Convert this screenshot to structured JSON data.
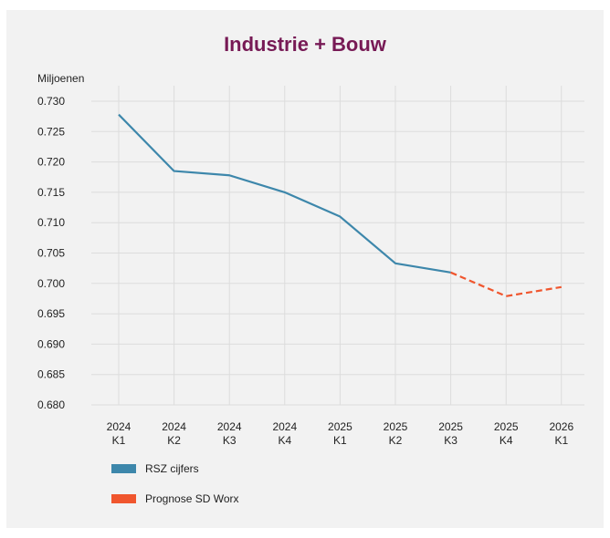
{
  "chart_data": {
    "type": "line",
    "title": "Industrie + Bouw",
    "ylabel": "Miljoenen",
    "xlabel": "",
    "categories": [
      [
        "2024",
        "K1"
      ],
      [
        "2024",
        "K2"
      ],
      [
        "2024",
        "K3"
      ],
      [
        "2024",
        "K4"
      ],
      [
        "2025",
        "K1"
      ],
      [
        "2025",
        "K2"
      ],
      [
        "2025",
        "K3"
      ],
      [
        "2025",
        "K4"
      ],
      [
        "2026",
        "K1"
      ]
    ],
    "yticks": [
      "0.730",
      "0.725",
      "0.720",
      "0.715",
      "0.710",
      "0.705",
      "0.700",
      "0.695",
      "0.690",
      "0.685",
      "0.680"
    ],
    "ylim": [
      0.68,
      0.73
    ],
    "grid": true,
    "legend_position": "bottom-left",
    "series": [
      {
        "name": "RSZ cijfers",
        "style": "solid",
        "color": "#3d87ab",
        "values": [
          0.7278,
          0.7185,
          0.7178,
          0.715,
          0.711,
          0.7033,
          0.7018,
          null,
          null
        ]
      },
      {
        "name": "Prognose SD Worx",
        "style": "dashed",
        "color": "#f0562e",
        "values": [
          null,
          null,
          null,
          null,
          null,
          null,
          0.7018,
          0.6979,
          0.6994
        ]
      }
    ]
  },
  "colors": {
    "title": "#771a55",
    "panel_background": "#f2f2f2",
    "grid": "#dcdcdc"
  }
}
